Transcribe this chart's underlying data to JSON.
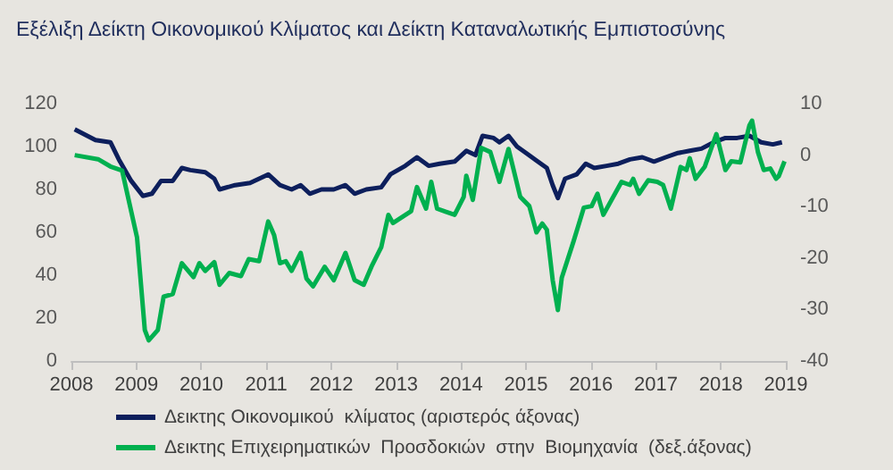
{
  "chart_data": {
    "type": "line",
    "title": "Εξέλιξη Δείκτη Οικονομικού Κλίματος και Δείκτη Καταναλωτικής Εμπιστοσύνης",
    "xlim": [
      2008,
      2019
    ],
    "xticks": [
      2008,
      2009,
      2010,
      2011,
      2012,
      2013,
      2014,
      2015,
      2016,
      2017,
      2018,
      2019
    ],
    "ylim": [
      0,
      120
    ],
    "yticks": [
      0,
      20,
      40,
      60,
      80,
      100,
      120
    ],
    "y2lim": [
      -40,
      10
    ],
    "y2ticks": [
      -40,
      -30,
      -20,
      -10,
      0,
      10
    ],
    "grid": false,
    "legend": "bottom",
    "marker": "none",
    "line_style": "solid",
    "series": [
      {
        "name": "Δεικτης Οικονομικού  κλίματος (αριστερός άξονας)",
        "color": "#0d1f5c",
        "x": [
          2008.05,
          2008.37,
          2008.6,
          2008.73,
          2008.92,
          2009.1,
          2009.24,
          2009.38,
          2009.56,
          2009.7,
          2009.83,
          2010.06,
          2010.2,
          2010.28,
          2010.52,
          2010.75,
          2011.03,
          2011.21,
          2011.39,
          2011.53,
          2011.67,
          2011.85,
          2012.04,
          2012.22,
          2012.36,
          2012.54,
          2012.77,
          2012.91,
          2013.14,
          2013.32,
          2013.5,
          2013.67,
          2013.9,
          2014.08,
          2014.22,
          2014.33,
          2014.5,
          2014.59,
          2014.73,
          2014.86,
          2015.0,
          2015.18,
          2015.32,
          2015.41,
          2015.49,
          2015.6,
          2015.78,
          2015.92,
          2016.05,
          2016.24,
          2016.42,
          2016.6,
          2016.79,
          2016.97,
          2017.15,
          2017.34,
          2017.52,
          2017.7,
          2017.89,
          2018.07,
          2018.25,
          2018.44,
          2018.62,
          2018.8,
          2018.94
        ],
        "values": [
          108,
          103,
          102,
          94,
          84,
          77,
          78,
          84,
          84,
          90,
          89,
          88,
          85,
          80,
          82,
          83,
          87,
          82,
          80,
          82,
          78,
          80,
          80,
          82,
          78,
          80,
          81,
          87,
          91,
          95,
          91,
          92,
          93,
          98,
          96,
          105,
          104,
          102,
          105,
          100,
          97,
          93,
          90,
          82,
          76,
          85,
          87,
          92,
          90,
          91,
          92,
          94,
          95,
          93,
          95,
          97,
          98,
          99,
          102,
          104,
          104,
          105,
          102,
          101,
          102
        ]
      },
      {
        "name": "Δεικτης Επιχειρηματικών  Προσδοκιών  στην  Βιομηχανία  (δεξ.άξονας)",
        "color": "#00b04f",
        "axis": "y2",
        "x": [
          2008.05,
          2008.41,
          2008.6,
          2008.78,
          2009.01,
          2009.13,
          2009.19,
          2009.33,
          2009.42,
          2009.56,
          2009.7,
          2009.88,
          2009.97,
          2010.06,
          2010.2,
          2010.28,
          2010.43,
          2010.61,
          2010.73,
          2010.89,
          2011.03,
          2011.12,
          2011.21,
          2011.3,
          2011.39,
          2011.53,
          2011.62,
          2011.72,
          2011.9,
          2012.04,
          2012.22,
          2012.36,
          2012.5,
          2012.63,
          2012.77,
          2012.88,
          2012.95,
          2013.23,
          2013.32,
          2013.46,
          2013.54,
          2013.63,
          2013.76,
          2013.9,
          2014.04,
          2014.08,
          2014.18,
          2014.31,
          2014.45,
          2014.59,
          2014.73,
          2014.91,
          2015.05,
          2015.16,
          2015.25,
          2015.32,
          2015.41,
          2015.49,
          2015.55,
          2015.73,
          2015.89,
          2016.01,
          2016.1,
          2016.19,
          2016.47,
          2016.6,
          2016.65,
          2016.74,
          2016.88,
          2017.02,
          2017.11,
          2017.23,
          2017.38,
          2017.47,
          2017.52,
          2017.61,
          2017.75,
          2017.93,
          2018.07,
          2018.16,
          2018.3,
          2018.44,
          2018.48,
          2018.57,
          2018.66,
          2018.76,
          2018.85,
          2018.89,
          2018.98
        ],
        "values": [
          0,
          -0.8,
          -2.2,
          -3,
          -16,
          -34,
          -36,
          -34,
          -27.5,
          -27,
          -21,
          -23.7,
          -21,
          -22.5,
          -20.8,
          -25.2,
          -22.9,
          -23.5,
          -20.2,
          -20.6,
          -12.9,
          -15.5,
          -21,
          -20.6,
          -22.5,
          -19,
          -24,
          -25.5,
          -21.7,
          -24.3,
          -19,
          -24.3,
          -25.2,
          -21.4,
          -17.9,
          -11.6,
          -13.2,
          -10.9,
          -6.2,
          -10.4,
          -5.2,
          -10.4,
          -11,
          -11.6,
          -8.1,
          -4,
          -8.7,
          1.4,
          0.6,
          -5.2,
          1.2,
          -8.1,
          -9.9,
          -15,
          -13.3,
          -14.5,
          -24.3,
          -30.1,
          -23.8,
          -16.8,
          -10.2,
          -9.9,
          -7.5,
          -11.6,
          -5.2,
          -5.8,
          -4.6,
          -7.5,
          -4.9,
          -5.2,
          -5.8,
          -10.4,
          -2.3,
          -2.9,
          -0.6,
          -4.6,
          -2.3,
          4.1,
          -2.9,
          -1.2,
          -1.4,
          5.8,
          6.7,
          0.6,
          -2.9,
          -2.6,
          -4.6,
          -4.1,
          -1.2
        ]
      }
    ]
  }
}
